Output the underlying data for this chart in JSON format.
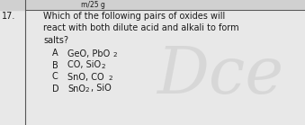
{
  "question_num": "17.",
  "q_line1": "Which of the following pairs of oxides will",
  "q_line2": "react with both dilute acid and alkali to form",
  "q_line3": "salts?",
  "opt_A_label": "A",
  "opt_A_main": "GeO, PbO",
  "opt_A_sub": "2",
  "opt_B_label": "B",
  "opt_B_main": "CO, SiO",
  "opt_B_sub": "2",
  "opt_C_label": "C",
  "opt_C_main": "SnO, CO",
  "opt_C_sub": "2",
  "opt_D_label": "D",
  "opt_D_main1": "SnO",
  "opt_D_sub": "2",
  "opt_D_main2": ", SiO",
  "bg_color": "#e8e8e8",
  "text_color": "#1a1a1a",
  "watermark_text": "Dce",
  "watermark_color": "#c8c8c8",
  "watermark_alpha": 0.5,
  "font_size": 7.0,
  "font_size_sub": 5.2,
  "line_sep": 13.5,
  "top_strip_color": "#d0d0d0",
  "border_color": "#555555"
}
